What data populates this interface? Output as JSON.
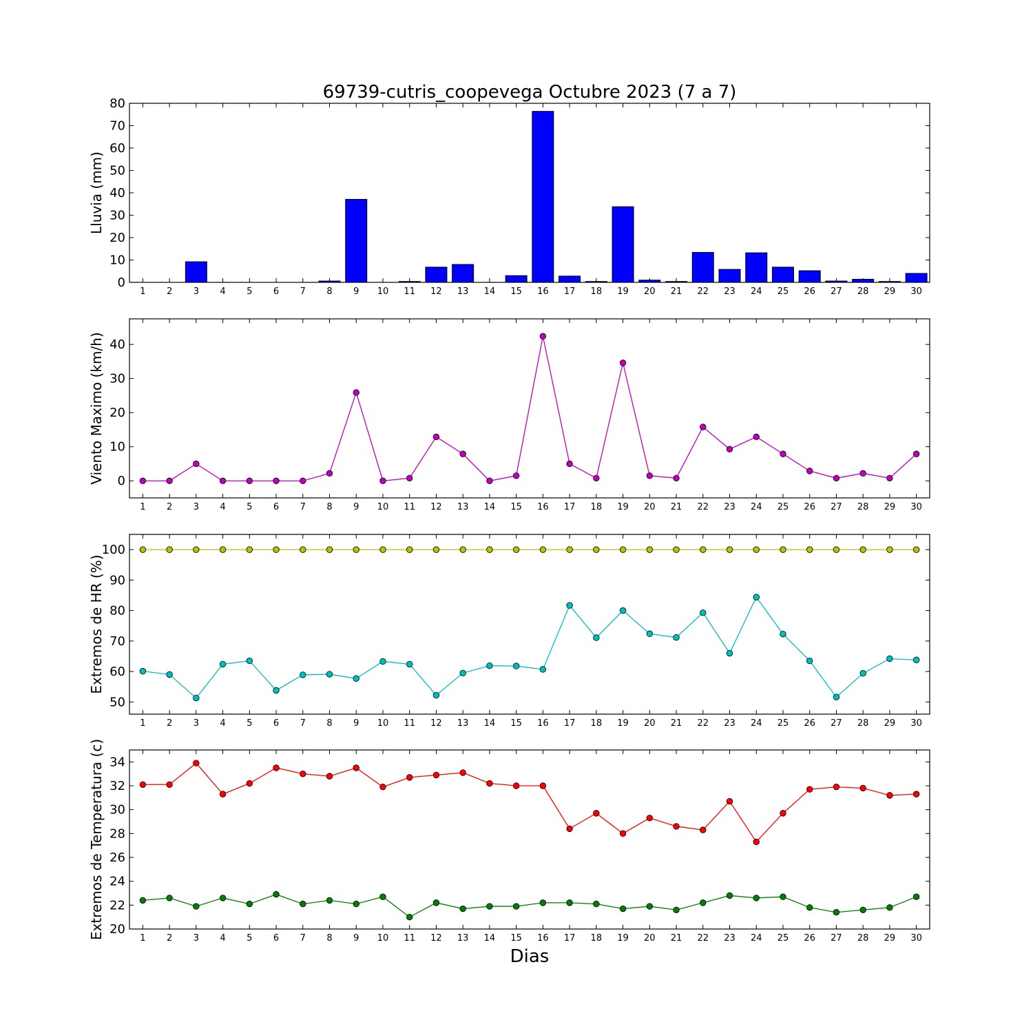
{
  "figure": {
    "title": "69739-cutris_coopevega Octubre 2023  (7 a 7)",
    "xlabel": "Dias"
  },
  "chart_data": [
    {
      "type": "bar",
      "ylabel": "Lluvia (mm)",
      "ylim": [
        0,
        80
      ],
      "yticks": [
        0,
        10,
        20,
        30,
        40,
        50,
        60,
        70,
        80
      ],
      "categories": [
        "1",
        "2",
        "3",
        "4",
        "5",
        "6",
        "7",
        "8",
        "9",
        "10",
        "11",
        "12",
        "13",
        "14",
        "15",
        "16",
        "17",
        "18",
        "19",
        "20",
        "21",
        "22",
        "23",
        "24",
        "25",
        "26",
        "27",
        "28",
        "29",
        "30"
      ],
      "series": [
        {
          "color": "#0000ff",
          "values": [
            0,
            0,
            9.2,
            0,
            0,
            0,
            0,
            0.6,
            37.1,
            0,
            0.4,
            6.8,
            8.0,
            0,
            3.0,
            76.4,
            2.8,
            0.4,
            33.8,
            1.0,
            0.4,
            13.4,
            5.8,
            13.2,
            6.8,
            5.2,
            0.6,
            1.4,
            0.4,
            4.0
          ]
        }
      ]
    },
    {
      "type": "line",
      "ylabel": "Viento Maximo (km/h)",
      "ylim": [
        -5,
        47.5
      ],
      "yticks": [
        0,
        10,
        20,
        30,
        40
      ],
      "x": [
        1,
        2,
        3,
        4,
        5,
        6,
        7,
        8,
        9,
        10,
        11,
        12,
        13,
        14,
        15,
        16,
        17,
        18,
        19,
        20,
        21,
        22,
        23,
        24,
        25,
        26,
        27,
        28,
        29,
        30
      ],
      "series": [
        {
          "color": "#bf00bf",
          "values": [
            0,
            0,
            5.0,
            0,
            0,
            0,
            0,
            2.2,
            25.9,
            0,
            0.8,
            12.9,
            7.9,
            0,
            1.5,
            42.4,
            5.0,
            0.8,
            34.6,
            1.5,
            0.8,
            15.8,
            9.3,
            12.9,
            7.9,
            2.9,
            0.8,
            2.2,
            0.8,
            7.9
          ]
        }
      ]
    },
    {
      "type": "line",
      "ylabel": "Extremos de HR (%)",
      "ylim": [
        46,
        105
      ],
      "yticks": [
        50,
        60,
        70,
        80,
        90,
        100
      ],
      "x": [
        1,
        2,
        3,
        4,
        5,
        6,
        7,
        8,
        9,
        10,
        11,
        12,
        13,
        14,
        15,
        16,
        17,
        18,
        19,
        20,
        21,
        22,
        23,
        24,
        25,
        26,
        27,
        28,
        29,
        30
      ],
      "series": [
        {
          "color": "#bfbf00",
          "values": [
            100,
            100,
            100,
            100,
            100,
            100,
            100,
            100,
            100,
            100,
            100,
            100,
            100,
            100,
            100,
            100,
            100,
            100,
            100,
            100,
            100,
            100,
            100,
            100,
            100,
            100,
            100,
            100,
            100,
            100
          ]
        },
        {
          "color": "#00bfbf",
          "values": [
            60.1,
            59.0,
            51.3,
            62.4,
            63.5,
            53.8,
            58.9,
            59.1,
            57.7,
            63.3,
            62.4,
            52.2,
            59.5,
            61.9,
            61.8,
            60.7,
            81.7,
            71.1,
            80.0,
            72.4,
            71.2,
            79.3,
            66.0,
            84.4,
            72.3,
            63.5,
            51.6,
            59.4,
            64.2,
            63.8
          ]
        }
      ]
    },
    {
      "type": "line",
      "ylabel": "Extremos de Temperatura (c)",
      "ylim": [
        20,
        35
      ],
      "yticks": [
        20,
        22,
        24,
        26,
        28,
        30,
        32,
        34
      ],
      "x": [
        1,
        2,
        3,
        4,
        5,
        6,
        7,
        8,
        9,
        10,
        11,
        12,
        13,
        14,
        15,
        16,
        17,
        18,
        19,
        20,
        21,
        22,
        23,
        24,
        25,
        26,
        27,
        28,
        29,
        30
      ],
      "series": [
        {
          "color": "#ff0000",
          "values": [
            32.1,
            32.1,
            33.9,
            31.3,
            32.2,
            33.5,
            33.0,
            32.8,
            33.5,
            31.9,
            32.7,
            32.9,
            33.1,
            32.2,
            32.0,
            32.0,
            28.4,
            29.7,
            28.0,
            29.3,
            28.6,
            28.3,
            30.7,
            27.3,
            29.7,
            31.7,
            31.9,
            31.8,
            31.2,
            31.3
          ]
        },
        {
          "color": "#007f00",
          "values": [
            22.4,
            22.6,
            21.9,
            22.6,
            22.1,
            22.9,
            22.1,
            22.4,
            22.1,
            22.7,
            21.0,
            22.2,
            21.7,
            21.9,
            21.9,
            22.2,
            22.2,
            22.1,
            21.7,
            21.9,
            21.6,
            22.2,
            22.8,
            22.6,
            22.7,
            21.8,
            21.4,
            21.6,
            21.8,
            22.7
          ]
        }
      ]
    }
  ]
}
